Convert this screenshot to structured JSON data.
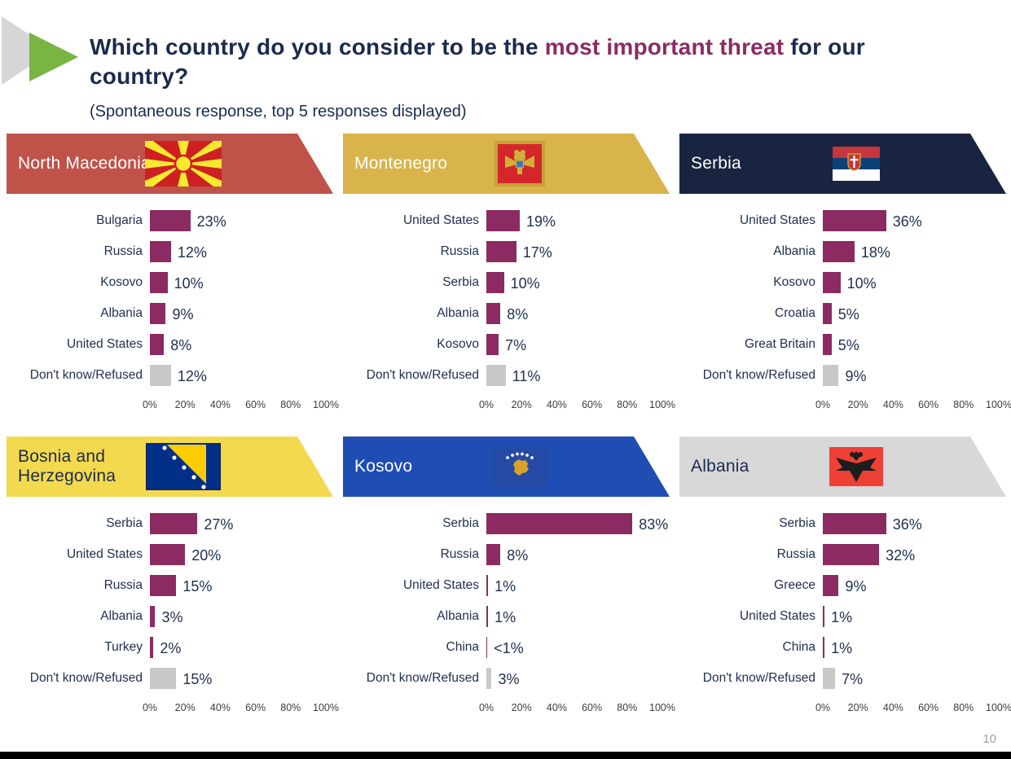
{
  "title": {
    "text_before": "Which country do you consider to be the ",
    "highlight": "most important threat",
    "text_after": " for our country?",
    "subtitle": "(Spontaneous response, top 5 responses displayed)"
  },
  "page_number": "10",
  "colors": {
    "bar": "#8c2a62",
    "refused_bar": "#c8c8c8",
    "title_text": "#1b2a4e",
    "highlight_text": "#8c2a62"
  },
  "chart_data": [
    {
      "type": "bar",
      "orientation": "horizontal",
      "country": "North Macedonia",
      "flag_icon": "north-macedonia-flag-icon",
      "flag_key": "north_macedonia",
      "banner_color": "#bf5249",
      "banner_text_color": "#ffffff",
      "xlim": [
        0,
        100
      ],
      "x_ticks": [
        "0%",
        "20%",
        "40%",
        "60%",
        "80%",
        "100%"
      ],
      "bars": [
        {
          "label": "Bulgaria",
          "value": 23,
          "value_label": "23%",
          "refused": false
        },
        {
          "label": "Russia",
          "value": 12,
          "value_label": "12%",
          "refused": false
        },
        {
          "label": "Kosovo",
          "value": 10,
          "value_label": "10%",
          "refused": false
        },
        {
          "label": "Albania",
          "value": 9,
          "value_label": "9%",
          "refused": false
        },
        {
          "label": "United States",
          "value": 8,
          "value_label": "8%",
          "refused": false
        },
        {
          "label": "Don't know/Refused",
          "value": 12,
          "value_label": "12%",
          "refused": true
        }
      ]
    },
    {
      "type": "bar",
      "orientation": "horizontal",
      "country": "Montenegro",
      "flag_icon": "montenegro-flag-icon",
      "flag_key": "montenegro",
      "banner_color": "#d9b44a",
      "banner_text_color": "#ffffff",
      "xlim": [
        0,
        100
      ],
      "x_ticks": [
        "0%",
        "20%",
        "40%",
        "60%",
        "80%",
        "100%"
      ],
      "bars": [
        {
          "label": "United States",
          "value": 19,
          "value_label": "19%",
          "refused": false
        },
        {
          "label": "Russia",
          "value": 17,
          "value_label": "17%",
          "refused": false
        },
        {
          "label": "Serbia",
          "value": 10,
          "value_label": "10%",
          "refused": false
        },
        {
          "label": "Albania",
          "value": 8,
          "value_label": "8%",
          "refused": false
        },
        {
          "label": "Kosovo",
          "value": 7,
          "value_label": "7%",
          "refused": false
        },
        {
          "label": "Don't know/Refused",
          "value": 11,
          "value_label": "11%",
          "refused": true
        }
      ]
    },
    {
      "type": "bar",
      "orientation": "horizontal",
      "country": "Serbia",
      "flag_icon": "serbia-flag-icon",
      "flag_key": "serbia",
      "banner_color": "#192440",
      "banner_text_color": "#ffffff",
      "xlim": [
        0,
        100
      ],
      "x_ticks": [
        "0%",
        "20%",
        "40%",
        "60%",
        "80%",
        "100%"
      ],
      "bars": [
        {
          "label": "United States",
          "value": 36,
          "value_label": "36%",
          "refused": false
        },
        {
          "label": "Albania",
          "value": 18,
          "value_label": "18%",
          "refused": false
        },
        {
          "label": "Kosovo",
          "value": 10,
          "value_label": "10%",
          "refused": false
        },
        {
          "label": "Croatia",
          "value": 5,
          "value_label": "5%",
          "refused": false
        },
        {
          "label": "Great Britain",
          "value": 5,
          "value_label": "5%",
          "refused": false
        },
        {
          "label": "Don't know/Refused",
          "value": 9,
          "value_label": "9%",
          "refused": true
        }
      ]
    },
    {
      "type": "bar",
      "orientation": "horizontal",
      "country": "Bosnia and Herzegovina",
      "flag_icon": "bosnia-herzegovina-flag-icon",
      "flag_key": "bosnia",
      "banner_color": "#f3d94d",
      "banner_text_color": "#1b2a4e",
      "xlim": [
        0,
        100
      ],
      "x_ticks": [
        "0%",
        "20%",
        "40%",
        "60%",
        "80%",
        "100%"
      ],
      "bars": [
        {
          "label": "Serbia",
          "value": 27,
          "value_label": "27%",
          "refused": false
        },
        {
          "label": "United States",
          "value": 20,
          "value_label": "20%",
          "refused": false
        },
        {
          "label": "Russia",
          "value": 15,
          "value_label": "15%",
          "refused": false
        },
        {
          "label": "Albania",
          "value": 3,
          "value_label": "3%",
          "refused": false
        },
        {
          "label": "Turkey",
          "value": 2,
          "value_label": "2%",
          "refused": false
        },
        {
          "label": "Don't know/Refused",
          "value": 15,
          "value_label": "15%",
          "refused": true
        }
      ]
    },
    {
      "type": "bar",
      "orientation": "horizontal",
      "country": "Kosovo",
      "flag_icon": "kosovo-flag-icon",
      "flag_key": "kosovo",
      "banner_color": "#1f4db3",
      "banner_text_color": "#ffffff",
      "xlim": [
        0,
        100
      ],
      "x_ticks": [
        "0%",
        "20%",
        "40%",
        "60%",
        "80%",
        "100%"
      ],
      "bars": [
        {
          "label": "Serbia",
          "value": 83,
          "value_label": "83%",
          "refused": false
        },
        {
          "label": "Russia",
          "value": 8,
          "value_label": "8%",
          "refused": false
        },
        {
          "label": "United States",
          "value": 1,
          "value_label": "1%",
          "refused": false
        },
        {
          "label": "Albania",
          "value": 1,
          "value_label": "1%",
          "refused": false
        },
        {
          "label": "China",
          "value": 0.5,
          "value_label": "<1%",
          "refused": false
        },
        {
          "label": "Don't know/Refused",
          "value": 3,
          "value_label": "3%",
          "refused": true
        }
      ]
    },
    {
      "type": "bar",
      "orientation": "horizontal",
      "country": "Albania",
      "flag_icon": "albania-flag-icon",
      "flag_key": "albania",
      "banner_color": "#d8d8d8",
      "banner_text_color": "#1b2a4e",
      "xlim": [
        0,
        100
      ],
      "x_ticks": [
        "0%",
        "20%",
        "40%",
        "60%",
        "80%",
        "100%"
      ],
      "bars": [
        {
          "label": "Serbia",
          "value": 36,
          "value_label": "36%",
          "refused": false
        },
        {
          "label": "Russia",
          "value": 32,
          "value_label": "32%",
          "refused": false
        },
        {
          "label": "Greece",
          "value": 9,
          "value_label": "9%",
          "refused": false
        },
        {
          "label": "United States",
          "value": 1,
          "value_label": "1%",
          "refused": false
        },
        {
          "label": "China",
          "value": 1,
          "value_label": "1%",
          "refused": false
        },
        {
          "label": "Don't know/Refused",
          "value": 7,
          "value_label": "7%",
          "refused": true
        }
      ]
    }
  ]
}
